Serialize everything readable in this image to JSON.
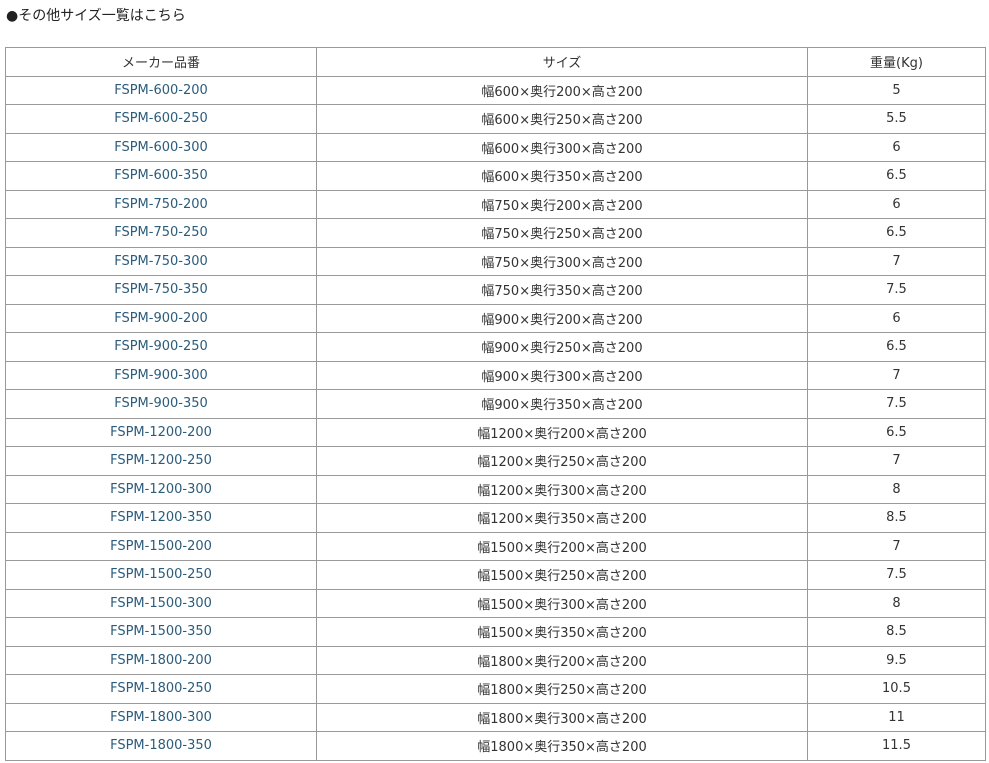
{
  "heading": "●その他サイズ一覧はこちら",
  "table": {
    "headers": [
      "メーカー品番",
      "サイズ",
      "重量(Kg)"
    ],
    "rows": [
      [
        "FSPM-600-200",
        "幅600×奥行200×高さ200",
        "5"
      ],
      [
        "FSPM-600-250",
        "幅600×奥行250×高さ200",
        "5.5"
      ],
      [
        "FSPM-600-300",
        "幅600×奥行300×高さ200",
        "6"
      ],
      [
        "FSPM-600-350",
        "幅600×奥行350×高さ200",
        "6.5"
      ],
      [
        "FSPM-750-200",
        "幅750×奥行200×高さ200",
        "6"
      ],
      [
        "FSPM-750-250",
        "幅750×奥行250×高さ200",
        "6.5"
      ],
      [
        "FSPM-750-300",
        "幅750×奥行300×高さ200",
        "7"
      ],
      [
        "FSPM-750-350",
        "幅750×奥行350×高さ200",
        "7.5"
      ],
      [
        "FSPM-900-200",
        "幅900×奥行200×高さ200",
        "6"
      ],
      [
        "FSPM-900-250",
        "幅900×奥行250×高さ200",
        "6.5"
      ],
      [
        "FSPM-900-300",
        "幅900×奥行300×高さ200",
        "7"
      ],
      [
        "FSPM-900-350",
        "幅900×奥行350×高さ200",
        "7.5"
      ],
      [
        "FSPM-1200-200",
        "幅1200×奥行200×高さ200",
        "6.5"
      ],
      [
        "FSPM-1200-250",
        "幅1200×奥行250×高さ200",
        "7"
      ],
      [
        "FSPM-1200-300",
        "幅1200×奥行300×高さ200",
        "8"
      ],
      [
        "FSPM-1200-350",
        "幅1200×奥行350×高さ200",
        "8.5"
      ],
      [
        "FSPM-1500-200",
        "幅1500×奥行200×高さ200",
        "7"
      ],
      [
        "FSPM-1500-250",
        "幅1500×奥行250×高さ200",
        "7.5"
      ],
      [
        "FSPM-1500-300",
        "幅1500×奥行300×高さ200",
        "8"
      ],
      [
        "FSPM-1500-350",
        "幅1500×奥行350×高さ200",
        "8.5"
      ],
      [
        "FSPM-1800-200",
        "幅1800×奥行200×高さ200",
        "9.5"
      ],
      [
        "FSPM-1800-250",
        "幅1800×奥行250×高さ200",
        "10.5"
      ],
      [
        "FSPM-1800-300",
        "幅1800×奥行300×高さ200",
        "11"
      ],
      [
        "FSPM-1800-350",
        "幅1800×奥行350×高さ200",
        "11.5"
      ]
    ]
  },
  "colors": {
    "link": "#2b5c7c",
    "border": "#999999"
  }
}
